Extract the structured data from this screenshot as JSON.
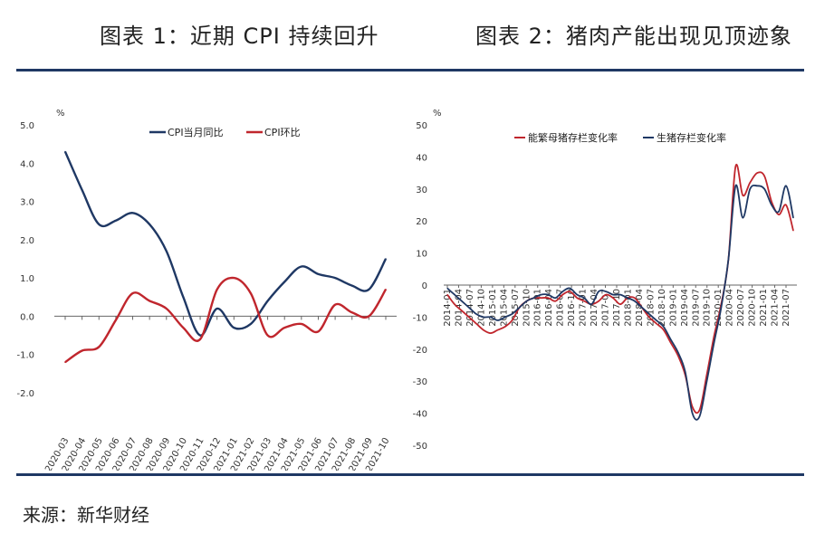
{
  "titles": {
    "chart1": "图表 1：近期 CPI 持续回升",
    "chart2": "图表 2：猪肉产能出现见顶迹象"
  },
  "footer": {
    "source": "来源：新华财经"
  },
  "colors": {
    "navy": "#1f3864",
    "red": "#c0262d",
    "rule": "#1f3864"
  },
  "chart_data": [
    {
      "type": "line",
      "unit": "%",
      "ylim": [
        -2.0,
        5.0
      ],
      "ytick_labels": [
        "5.0",
        "4.0",
        "3.0",
        "2.0",
        "1.0",
        "0.0",
        "-1.0",
        "-2.0"
      ],
      "x": [
        "2020-03",
        "2020-04",
        "2020-05",
        "2020-06",
        "2020-07",
        "2020-08",
        "2020-09",
        "2020-10",
        "2020-11",
        "2020-12",
        "2021-01",
        "2021-02",
        "2021-03",
        "2021-04",
        "2021-05",
        "2021-06",
        "2021-07",
        "2021-08",
        "2021-09",
        "2021-10"
      ],
      "legend_position": "top",
      "series": [
        {
          "name": "CPI当月同比",
          "color": "#1f3864",
          "values": [
            4.3,
            3.3,
            2.4,
            2.5,
            2.7,
            2.4,
            1.7,
            0.5,
            -0.5,
            0.2,
            -0.3,
            -0.2,
            0.4,
            0.9,
            1.3,
            1.1,
            1.0,
            0.8,
            0.7,
            1.5
          ]
        },
        {
          "name": "CPI环比",
          "color": "#c0262d",
          "values": [
            -1.2,
            -0.9,
            -0.8,
            -0.1,
            0.6,
            0.4,
            0.2,
            -0.3,
            -0.6,
            0.7,
            1.0,
            0.6,
            -0.5,
            -0.3,
            -0.2,
            -0.4,
            0.3,
            0.1,
            0.0,
            0.7
          ]
        }
      ]
    },
    {
      "type": "line",
      "unit": "%",
      "ylim": [
        -50,
        50
      ],
      "ytick_labels": [
        "50",
        "40",
        "30",
        "20",
        "10",
        "0",
        "-10",
        "-20",
        "-30",
        "-40",
        "-50"
      ],
      "x_tick_labels": [
        "2014-01",
        "2014-04",
        "2014-07",
        "2014-10",
        "2015-01",
        "2015-04",
        "2015-07",
        "2015-10",
        "2016-01",
        "2016-04",
        "2016-07",
        "2016-10",
        "2017-01",
        "2017-04",
        "2017-07",
        "2017-10",
        "2018-01",
        "2018-04",
        "2018-07",
        "2018-10",
        "2019-01",
        "2019-04",
        "2019-07",
        "2019-10",
        "2020-01",
        "2020-04",
        "2020-07",
        "2020-10",
        "2021-01",
        "2021-04",
        "2021-07"
      ],
      "legend_position": "top",
      "series": [
        {
          "name": "能繁母猪存栏变化率",
          "color": "#c0262d",
          "values": [
            -3,
            -6,
            -8,
            -10,
            -12,
            -14,
            -15,
            -14,
            -13,
            -11,
            -7,
            -5,
            -4,
            -4,
            -4,
            -5,
            -3,
            -2,
            -4,
            -5,
            -6,
            -5,
            -3,
            -4,
            -6,
            -4,
            -4,
            -7,
            -10,
            -12,
            -14,
            -18,
            -22,
            -28,
            -38,
            -39,
            -28,
            -16,
            -6,
            8,
            37,
            28,
            32,
            35,
            34,
            26,
            22,
            25,
            17
          ]
        },
        {
          "name": "生猪存栏变化率",
          "color": "#1f3864",
          "values": [
            -1,
            -3,
            -5,
            -7,
            -9,
            -10,
            -10,
            -11,
            -10,
            -9,
            -7,
            -5,
            -4,
            -3,
            -3,
            -4,
            -2,
            -1,
            -3,
            -4,
            -6,
            -2,
            -2,
            -3,
            -3,
            -4,
            -5,
            -7,
            -9,
            -11,
            -13,
            -17,
            -21,
            -27,
            -40,
            -41,
            -30,
            -18,
            -7,
            8,
            31,
            21,
            30,
            31,
            30,
            25,
            23,
            31,
            21
          ]
        }
      ]
    }
  ]
}
